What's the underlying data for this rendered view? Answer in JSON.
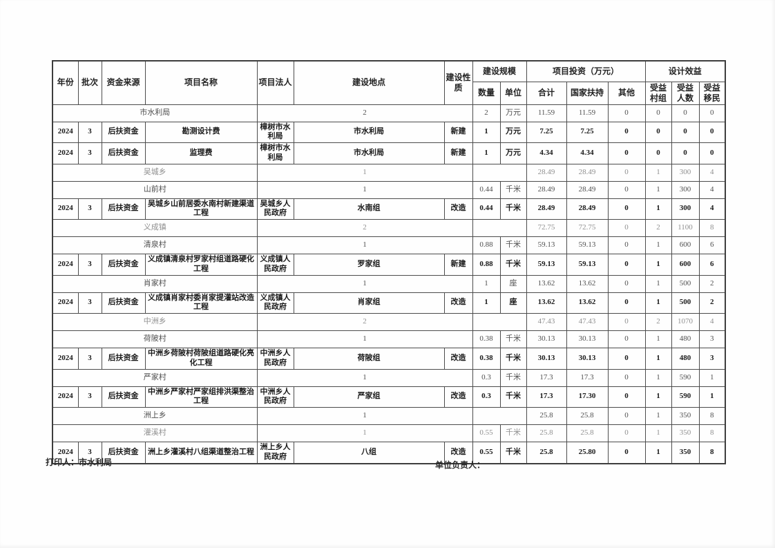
{
  "table": {
    "header": {
      "year": "年份",
      "batch": "批次",
      "funding_source": "资金来源",
      "project_name": "项目名称",
      "legal_person": "项目法人",
      "location": "建设地点",
      "nature": "建设性质",
      "scale_group": "建设规模",
      "quantity": "数量",
      "unit": "单位",
      "investment_group": "项目投资（万元）",
      "total": "合计",
      "state_support": "国家扶持",
      "other": "其他",
      "benefit_group": "设计效益",
      "benefit_villages": "受益村组",
      "benefit_people": "受益人数",
      "benefit_migrants": "受益移民"
    },
    "rows": [
      {
        "type": "group",
        "tone": "mid",
        "name": "市水利局",
        "count": "2",
        "quantity": "2",
        "unit": "万元",
        "total": "11.59",
        "state": "11.59",
        "other": "0",
        "bvg": "0",
        "bpp": "0",
        "bmg": "0"
      },
      {
        "type": "project",
        "tone": "dark",
        "year": "2024",
        "batch": "3",
        "source": "后扶资金",
        "name": "勘测设计费",
        "legal": "樟树市水利局",
        "location": "市水利局",
        "nature": "新建",
        "quantity": "1",
        "unit": "万元",
        "total": "7.25",
        "state": "7.25",
        "other": "0",
        "bvg": "0",
        "bpp": "0",
        "bmg": "0"
      },
      {
        "type": "project",
        "tone": "dark",
        "year": "2024",
        "batch": "3",
        "source": "后扶资金",
        "name": "监理费",
        "legal": "樟树市水利局",
        "location": "市水利局",
        "nature": "新建",
        "quantity": "1",
        "unit": "万元",
        "total": "4.34",
        "state": "4.34",
        "other": "0",
        "bvg": "0",
        "bpp": "0",
        "bmg": "0"
      },
      {
        "type": "group",
        "tone": "light",
        "name": "吴城乡",
        "count": "1",
        "quantity": null,
        "unit": null,
        "total": "28.49",
        "state": "28.49",
        "other": "0",
        "bvg": "1",
        "bpp": "300",
        "bmg": "4"
      },
      {
        "type": "group",
        "tone": "mid",
        "name": "山前村",
        "count": "1",
        "quantity": "0.44",
        "unit": "千米",
        "total": "28.49",
        "state": "28.49",
        "other": "0",
        "bvg": "1",
        "bpp": "300",
        "bmg": "4"
      },
      {
        "type": "project",
        "tone": "dark",
        "year": "2024",
        "batch": "3",
        "source": "后扶资金",
        "name": "吴城乡山前居委水南村新建渠道工程",
        "legal": "吴城乡人民政府",
        "location": "水南组",
        "nature": "改造",
        "quantity": "0.44",
        "unit": "千米",
        "total": "28.49",
        "state": "28.49",
        "other": "0",
        "bvg": "1",
        "bpp": "300",
        "bmg": "4"
      },
      {
        "type": "group",
        "tone": "light",
        "name": "义成镇",
        "count": "2",
        "quantity": null,
        "unit": null,
        "total": "72.75",
        "state": "72.75",
        "other": "0",
        "bvg": "2",
        "bpp": "1100",
        "bmg": "8"
      },
      {
        "type": "group",
        "tone": "mid",
        "name": "清泉村",
        "count": "1",
        "quantity": "0.88",
        "unit": "千米",
        "total": "59.13",
        "state": "59.13",
        "other": "0",
        "bvg": "1",
        "bpp": "600",
        "bmg": "6"
      },
      {
        "type": "project",
        "tone": "dark",
        "year": "2024",
        "batch": "3",
        "source": "后扶资金",
        "name": "义成镇清泉村罗家村组道路硬化工程",
        "legal": "义成镇人民政府",
        "location": "罗家组",
        "nature": "新建",
        "quantity": "0.88",
        "unit": "千米",
        "total": "59.13",
        "state": "59.13",
        "other": "0",
        "bvg": "1",
        "bpp": "600",
        "bmg": "6"
      },
      {
        "type": "group",
        "tone": "mid",
        "name": "肖家村",
        "count": "1",
        "quantity": "1",
        "unit": "座",
        "total": "13.62",
        "state": "13.62",
        "other": "0",
        "bvg": "1",
        "bpp": "500",
        "bmg": "2"
      },
      {
        "type": "project",
        "tone": "dark",
        "year": "2024",
        "batch": "3",
        "source": "后扶资金",
        "name": "义成镇肖家村委肖家提灌站改造工程",
        "legal": "义成镇人民政府",
        "location": "肖家组",
        "nature": "改造",
        "quantity": "1",
        "unit": "座",
        "total": "13.62",
        "state": "13.62",
        "other": "0",
        "bvg": "1",
        "bpp": "500",
        "bmg": "2"
      },
      {
        "type": "group",
        "tone": "light",
        "name": "中洲乡",
        "count": "2",
        "quantity": null,
        "unit": null,
        "total": "47.43",
        "state": "47.43",
        "other": "0",
        "bvg": "2",
        "bpp": "1070",
        "bmg": "4"
      },
      {
        "type": "group",
        "tone": "mid",
        "name": "荷陂村",
        "count": "1",
        "quantity": "0.38",
        "unit": "千米",
        "total": "30.13",
        "state": "30.13",
        "other": "0",
        "bvg": "1",
        "bpp": "480",
        "bmg": "3"
      },
      {
        "type": "project",
        "tone": "dark",
        "year": "2024",
        "batch": "3",
        "source": "后扶资金",
        "name": "中洲乡荷陂村荷陂组道路硬化亮化工程",
        "legal": "中洲乡人民政府",
        "location": "荷陂组",
        "nature": "改造",
        "quantity": "0.38",
        "unit": "千米",
        "total": "30.13",
        "state": "30.13",
        "other": "0",
        "bvg": "1",
        "bpp": "480",
        "bmg": "3"
      },
      {
        "type": "group",
        "tone": "mid",
        "name": "严家村",
        "count": "1",
        "quantity": "0.3",
        "unit": "千米",
        "total": "17.3",
        "state": "17.3",
        "other": "0",
        "bvg": "1",
        "bpp": "590",
        "bmg": "1"
      },
      {
        "type": "project",
        "tone": "dark",
        "year": "2024",
        "batch": "3",
        "source": "后扶资金",
        "name": "中洲乡严家村严家组排洪渠整治工程",
        "legal": "中洲乡人民政府",
        "location": "严家组",
        "nature": "改造",
        "quantity": "0.3",
        "unit": "千米",
        "total": "17.3",
        "state": "17.30",
        "other": "0",
        "bvg": "1",
        "bpp": "590",
        "bmg": "1"
      },
      {
        "type": "group",
        "tone": "mid",
        "name": "洲上乡",
        "count": "1",
        "quantity": null,
        "unit": null,
        "total": "25.8",
        "state": "25.8",
        "other": "0",
        "bvg": "1",
        "bpp": "350",
        "bmg": "8"
      },
      {
        "type": "group",
        "tone": "light",
        "name": "灌溪村",
        "count": "1",
        "quantity": "0.55",
        "unit": "千米",
        "total": "25.8",
        "state": "25.8",
        "other": "0",
        "bvg": "1",
        "bpp": "350",
        "bmg": "8"
      },
      {
        "type": "project",
        "tone": "dark",
        "year": "2024",
        "batch": "3",
        "source": "后扶资金",
        "name": "洲上乡灌溪村八组渠道整治工程",
        "legal": "洲上乡人民政府",
        "location": "八组",
        "nature": "改造",
        "quantity": "0.55",
        "unit": "千米",
        "total": "25.8",
        "state": "25.80",
        "other": "0",
        "bvg": "1",
        "bpp": "350",
        "bmg": "8"
      }
    ]
  },
  "footer": {
    "printer": "打印人：市水利局",
    "unit_head": "单位负责人："
  }
}
